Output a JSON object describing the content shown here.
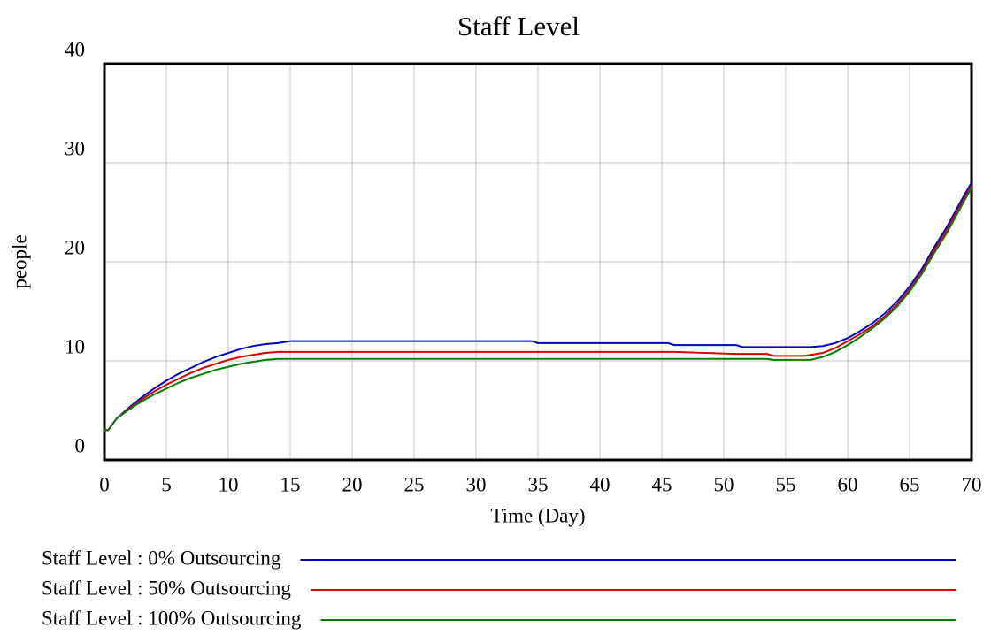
{
  "chart_data": {
    "type": "line",
    "title": "Staff Level",
    "x_label": "Time (Day)",
    "y_label": "people",
    "x": [
      0,
      0.3,
      1,
      2,
      3,
      4,
      5,
      6,
      7,
      8,
      9,
      10,
      11,
      12,
      13,
      14,
      15,
      34.5,
      35,
      45.5,
      46,
      51,
      51.5,
      53.5,
      54,
      56.5,
      57,
      58,
      59,
      60,
      61,
      62,
      63,
      64,
      65,
      66,
      67,
      68,
      69,
      70
    ],
    "series": [
      {
        "name": "Staff Level : 0% Outsourcing",
        "color": "#0000cc",
        "values": [
          3,
          3,
          4.2,
          5.3,
          6.3,
          7.2,
          8.0,
          8.7,
          9.3,
          9.9,
          10.4,
          10.8,
          11.2,
          11.5,
          11.7,
          11.8,
          12.0,
          12.0,
          11.8,
          11.8,
          11.6,
          11.6,
          11.4,
          11.4,
          11.4,
          11.4,
          11.4,
          11.5,
          11.8,
          12.3,
          13.0,
          13.8,
          14.8,
          16.0,
          17.5,
          19.3,
          21.5,
          23.5,
          25.8,
          28.0
        ]
      },
      {
        "name": "Staff Level : 50% Outsourcing",
        "color": "#dd0000",
        "values": [
          3,
          3,
          4.2,
          5.2,
          6.1,
          6.9,
          7.6,
          8.2,
          8.8,
          9.3,
          9.7,
          10.1,
          10.4,
          10.6,
          10.8,
          10.9,
          10.9,
          10.9,
          10.9,
          10.9,
          10.9,
          10.7,
          10.7,
          10.7,
          10.5,
          10.5,
          10.6,
          10.8,
          11.3,
          12.0,
          12.7,
          13.5,
          14.5,
          15.7,
          17.2,
          19.0,
          21.2,
          23.2,
          25.5,
          27.7
        ]
      },
      {
        "name": "Staff Level : 100% Outsourcing",
        "color": "#008000",
        "values": [
          3,
          3,
          4.2,
          5.1,
          5.9,
          6.6,
          7.2,
          7.8,
          8.3,
          8.7,
          9.1,
          9.4,
          9.7,
          9.9,
          10.1,
          10.2,
          10.2,
          10.2,
          10.2,
          10.2,
          10.2,
          10.2,
          10.2,
          10.2,
          10.1,
          10.1,
          10.1,
          10.4,
          10.9,
          11.6,
          12.4,
          13.3,
          14.3,
          15.5,
          17.0,
          18.8,
          20.9,
          22.9,
          25.2,
          27.5
        ]
      }
    ],
    "xlim": [
      0,
      70
    ],
    "xticks": [
      0,
      5,
      10,
      15,
      20,
      25,
      30,
      35,
      40,
      45,
      50,
      55,
      60,
      65,
      70
    ],
    "ylim": [
      0,
      40
    ],
    "yticks": [
      0,
      10,
      20,
      30,
      40
    ],
    "grid": true
  }
}
